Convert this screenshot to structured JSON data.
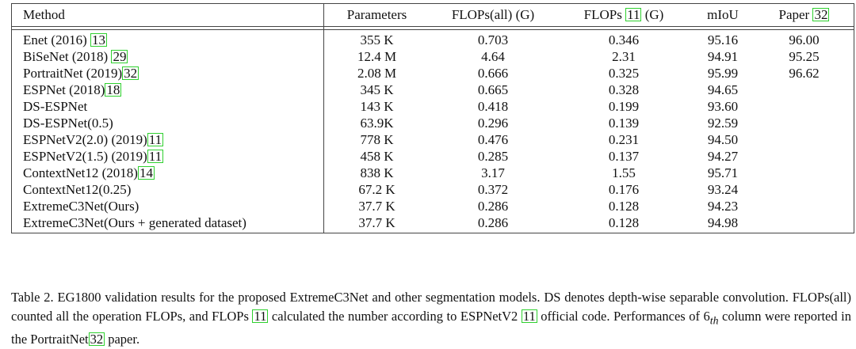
{
  "table": {
    "headers": [
      {
        "text": "Method"
      },
      {
        "text": "Parameters"
      },
      {
        "text": "FLOPs(all) (G)"
      },
      {
        "pre": "FLOPs ",
        "cite": "11",
        "post": " (G)"
      },
      {
        "text": "mIoU"
      },
      {
        "pre": "Paper ",
        "cite": "32",
        "post": ""
      }
    ],
    "rows": [
      {
        "method": "Enet (2016) ",
        "cite": "13",
        "params": "355 K",
        "flops_all": "0.703",
        "flops11": "0.346",
        "miou": "95.16",
        "paper": "96.00",
        "bold": false
      },
      {
        "method": "BiSeNet (2018) ",
        "cite": "29",
        "params": "12.4 M",
        "flops_all": "4.64",
        "flops11": "2.31",
        "miou": "94.91",
        "paper": "95.25",
        "bold": false
      },
      {
        "method": "PortraitNet (2019)",
        "cite": "32",
        "params": "2.08 M",
        "flops_all": "0.666",
        "flops11": "0.325",
        "miou": "95.99",
        "paper": "96.62",
        "bold": false
      },
      {
        "method": "ESPNet (2018)",
        "cite": "18",
        "params": "345 K",
        "flops_all": "0.665",
        "flops11": "0.328",
        "miou": "94.65",
        "paper": "",
        "bold": false
      },
      {
        "method": "DS-ESPNet",
        "cite": "",
        "params": "143 K",
        "flops_all": "0.418",
        "flops11": "0.199",
        "miou": "93.60",
        "paper": "",
        "bold": false
      },
      {
        "method": "DS-ESPNet(0.5)",
        "cite": "",
        "params": "63.9K",
        "flops_all": "0.296",
        "flops11": "0.139",
        "miou": "92.59",
        "paper": "",
        "bold": false
      },
      {
        "method": "ESPNetV2(2.0) (2019)",
        "cite": "11",
        "params": "778 K",
        "flops_all": "0.476",
        "flops11": "0.231",
        "miou": "94.50",
        "paper": "",
        "bold": false
      },
      {
        "method": "ESPNetV2(1.5) (2019)",
        "cite": "11",
        "params": "458 K",
        "flops_all": "0.285",
        "flops11": "0.137",
        "miou": "94.27",
        "paper": "",
        "bold": false
      },
      {
        "method": "ContextNet12 (2018)",
        "cite": "14",
        "params": "838 K",
        "flops_all": "3.17",
        "flops11": "1.55",
        "miou": "95.71",
        "paper": "",
        "bold": false
      },
      {
        "method": "ContextNet12(0.25)",
        "cite": "",
        "params": "67.2 K",
        "flops_all": "0.372",
        "flops11": "0.176",
        "miou": "93.24",
        "paper": "",
        "bold": false
      },
      {
        "method": "ExtremeC3Net(Ours)",
        "cite": "",
        "params": "37.7 K",
        "flops_all": "0.286",
        "flops11": "0.128",
        "miou": "94.23",
        "paper": "",
        "bold": true
      },
      {
        "method": "ExtremeC3Net(Ours + generated dataset)",
        "cite": "",
        "params": "37.7 K",
        "flops_all": "0.286",
        "flops11": "0.128",
        "miou": "94.98",
        "paper": "",
        "bold": true
      }
    ]
  },
  "caption": {
    "p1": "Table 2. EG1800 validation results for the proposed ExtremeC3Net and other segmentation models.  DS denotes depth-wise separable convolution.  FLOPs(all) counted all the operation FLOPs, and FLOPs ",
    "c1": "11",
    "p2": " calculated the number according to ESPNetV2 ",
    "c2": "11",
    "p3": " official code. Performances of 6",
    "sub": "th",
    "p4": " column were reported in the PortraitNet",
    "c3": "32",
    "p5": " paper."
  },
  "colors": {
    "cite_box": "#2fd02f",
    "rule": "#444444"
  }
}
